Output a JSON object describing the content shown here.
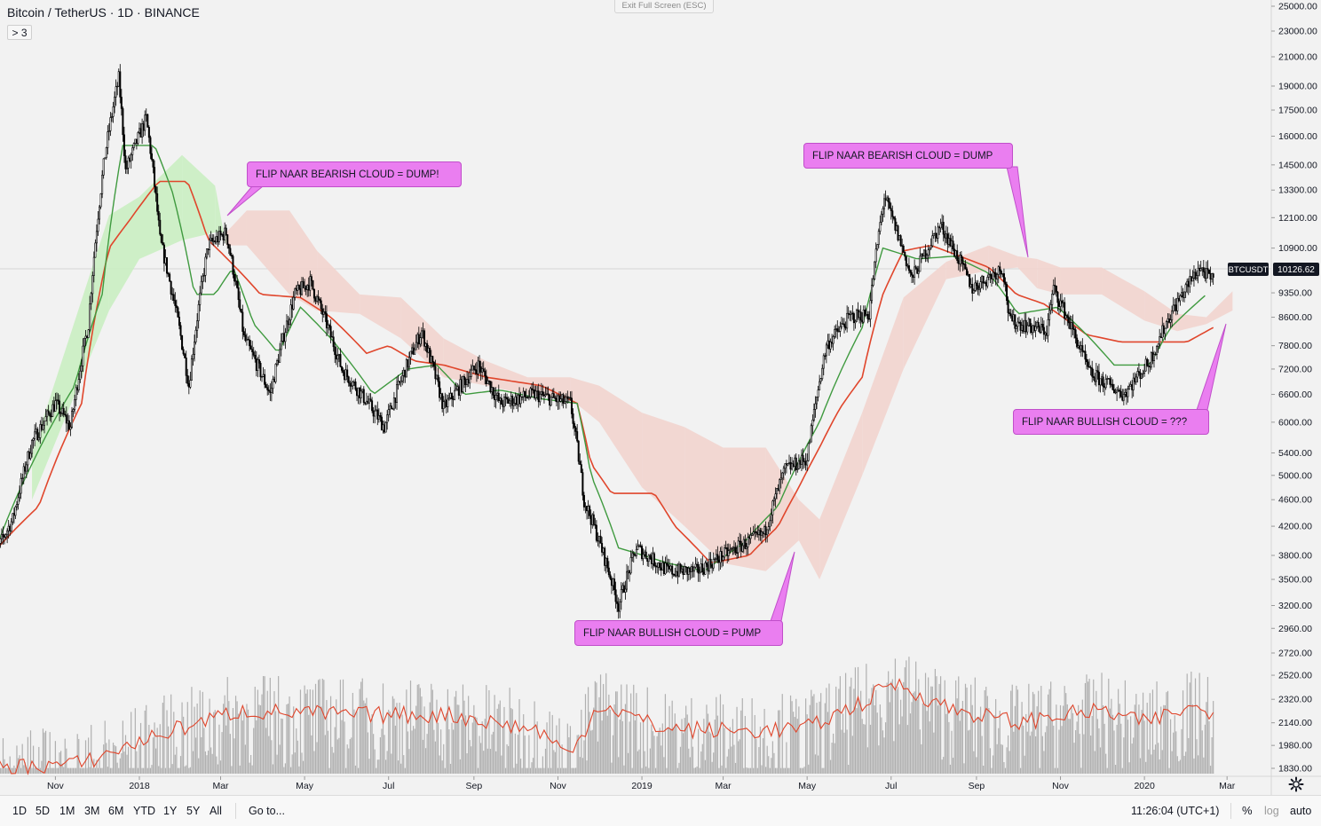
{
  "header": {
    "title": "Bitcoin / TetherUS",
    "sep1": "·",
    "interval": "1D",
    "sep2": "·",
    "exchange": "BINANCE",
    "collapse_label": "> 3"
  },
  "exit_fullscreen_label": "Exit Full Screen (ESC)",
  "callouts": {
    "c1": "FLIP NAAR BEARISH CLOUD = DUMP!",
    "c2": "FLIP NAAR BULLISH CLOUD = PUMP",
    "c3": "FLIP NAAR BEARISH CLOUD = DUMP",
    "c4": "FLIP NAAR BULLISH CLOUD = ???"
  },
  "price_tag": {
    "symbol": "BTCUSDT",
    "price": "10126.62"
  },
  "bottom_bar": {
    "timeframes": [
      "1D",
      "5D",
      "1M",
      "3M",
      "6M",
      "YTD",
      "1Y",
      "5Y",
      "All"
    ],
    "goto": "Go to...",
    "clock": "11:26:04 (UTC+1)",
    "percent": "%",
    "log": "log",
    "auto": "auto"
  },
  "colors": {
    "bg": "#f2f2f2",
    "candle": "#000000",
    "kijun": "#e0462c",
    "tenkan": "#3f9a3f",
    "cloud_bull": "#c8efc0",
    "cloud_bear": "#f2d2cc",
    "volume": "#a8a8a8",
    "vol_ma": "#e0462c",
    "callout": "#ea7ef0"
  },
  "chart_data": {
    "type": "line",
    "title": "Bitcoin / TetherUS · 1D · BINANCE",
    "scale": "log",
    "y_ticks": [
      25000,
      23000,
      21000,
      19000,
      17500,
      16000,
      14500,
      13300,
      12100,
      10900,
      9350,
      8600,
      7800,
      7200,
      6600,
      6000,
      5400,
      5000,
      4600,
      4200,
      3800,
      3500,
      3200,
      2960,
      2720,
      2520,
      2320,
      2140,
      1980,
      1830
    ],
    "y_tick_labels": [
      "25000.00",
      "23000.00",
      "21000.00",
      "19000.00",
      "17500.00",
      "16000.00",
      "14500.00",
      "13300.00",
      "12100.00",
      "10900.00",
      "9350.00",
      "8600.00",
      "7800.00",
      "7200.00",
      "6600.00",
      "6000.00",
      "5400.00",
      "5000.00",
      "4600.00",
      "4200.00",
      "3800.00",
      "3500.00",
      "3200.00",
      "2960.00",
      "2720.00",
      "2520.00",
      "2320.00",
      "2140.00",
      "1980.00",
      "1830.00"
    ],
    "x_tick_labels": [
      "Nov",
      "2018",
      "Mar",
      "May",
      "Jul",
      "Sep",
      "Nov",
      "2019",
      "Mar",
      "May",
      "Jul",
      "Sep",
      "Nov",
      "2020",
      "Mar"
    ],
    "x_ticks": [
      "2017-11-01",
      "2018-01-01",
      "2018-03-01",
      "2018-05-01",
      "2018-07-01",
      "2018-09-01",
      "2018-11-01",
      "2019-01-01",
      "2019-03-01",
      "2019-05-01",
      "2019-07-01",
      "2019-09-01",
      "2019-11-01",
      "2020-01-01",
      "2020-03-01"
    ],
    "x_range": [
      "2017-09-15",
      "2020-03-25"
    ],
    "last_price": 10126.62,
    "series": [
      {
        "name": "BTCUSDT",
        "kind": "candles-close",
        "points": [
          [
            "2017-09-15",
            3700
          ],
          [
            "2017-10-01",
            4300
          ],
          [
            "2017-10-15",
            5600
          ],
          [
            "2017-11-01",
            6400
          ],
          [
            "2017-11-12",
            5900
          ],
          [
            "2017-11-25",
            8400
          ],
          [
            "2017-12-07",
            15000
          ],
          [
            "2017-12-17",
            19500
          ],
          [
            "2017-12-22",
            14200
          ],
          [
            "2018-01-06",
            17000
          ],
          [
            "2018-01-16",
            11200
          ],
          [
            "2018-02-06",
            6800
          ],
          [
            "2018-02-20",
            11000
          ],
          [
            "2018-03-05",
            11500
          ],
          [
            "2018-03-18",
            8000
          ],
          [
            "2018-04-06",
            6600
          ],
          [
            "2018-04-24",
            9300
          ],
          [
            "2018-05-05",
            9700
          ],
          [
            "2018-05-28",
            7200
          ],
          [
            "2018-06-28",
            5900
          ],
          [
            "2018-07-25",
            8200
          ],
          [
            "2018-08-10",
            6300
          ],
          [
            "2018-09-04",
            7300
          ],
          [
            "2018-09-20",
            6400
          ],
          [
            "2018-10-15",
            6600
          ],
          [
            "2018-11-10",
            6400
          ],
          [
            "2018-11-20",
            4600
          ],
          [
            "2018-12-15",
            3200
          ],
          [
            "2018-12-28",
            3900
          ],
          [
            "2019-01-20",
            3600
          ],
          [
            "2019-02-10",
            3600
          ],
          [
            "2019-03-01",
            3800
          ],
          [
            "2019-03-31",
            4100
          ],
          [
            "2019-04-15",
            5100
          ],
          [
            "2019-05-01",
            5300
          ],
          [
            "2019-05-15",
            7800
          ],
          [
            "2019-06-01",
            8600
          ],
          [
            "2019-06-15",
            8700
          ],
          [
            "2019-06-26",
            13000
          ],
          [
            "2019-07-16",
            9800
          ],
          [
            "2019-08-06",
            11800
          ],
          [
            "2019-08-29",
            9500
          ],
          [
            "2019-09-20",
            10200
          ],
          [
            "2019-09-25",
            8500
          ],
          [
            "2019-10-22",
            8200
          ],
          [
            "2019-10-27",
            9500
          ],
          [
            "2019-11-22",
            7100
          ],
          [
            "2019-12-17",
            6600
          ],
          [
            "2020-01-05",
            7400
          ],
          [
            "2020-01-20",
            8700
          ],
          [
            "2020-02-10",
            10200
          ],
          [
            "2020-02-20",
            9700
          ]
        ]
      },
      {
        "name": "Tenkan-sen",
        "points": [
          [
            "2017-09-15",
            3700
          ],
          [
            "2017-10-15",
            5200
          ],
          [
            "2017-11-15",
            6800
          ],
          [
            "2017-12-05",
            9300
          ],
          [
            "2017-12-20",
            15500
          ],
          [
            "2018-01-12",
            15500
          ],
          [
            "2018-01-25",
            13200
          ],
          [
            "2018-02-10",
            9300
          ],
          [
            "2018-02-25",
            9300
          ],
          [
            "2018-03-10",
            10200
          ],
          [
            "2018-03-25",
            8400
          ],
          [
            "2018-04-12",
            7600
          ],
          [
            "2018-04-28",
            8900
          ],
          [
            "2018-05-20",
            8000
          ],
          [
            "2018-06-20",
            6600
          ],
          [
            "2018-07-15",
            7200
          ],
          [
            "2018-08-05",
            7300
          ],
          [
            "2018-08-25",
            6600
          ],
          [
            "2018-09-20",
            6700
          ],
          [
            "2018-10-20",
            6500
          ],
          [
            "2018-11-15",
            6400
          ],
          [
            "2018-11-25",
            5000
          ],
          [
            "2018-12-15",
            3900
          ],
          [
            "2019-01-20",
            3700
          ],
          [
            "2019-02-15",
            3600
          ],
          [
            "2019-03-15",
            3950
          ],
          [
            "2019-04-10",
            4500
          ],
          [
            "2019-05-10",
            6000
          ],
          [
            "2019-06-10",
            8300
          ],
          [
            "2019-06-25",
            10900
          ],
          [
            "2019-07-20",
            10500
          ],
          [
            "2019-08-15",
            10600
          ],
          [
            "2019-09-10",
            10000
          ],
          [
            "2019-10-01",
            8700
          ],
          [
            "2019-10-30",
            8900
          ],
          [
            "2019-11-20",
            8100
          ],
          [
            "2019-12-10",
            7300
          ],
          [
            "2020-01-05",
            7300
          ],
          [
            "2020-01-20",
            8300
          ],
          [
            "2020-02-15",
            9300
          ]
        ]
      },
      {
        "name": "Kijun-sen",
        "points": [
          [
            "2017-09-15",
            3800
          ],
          [
            "2017-10-20",
            4500
          ],
          [
            "2017-11-20",
            6400
          ],
          [
            "2017-12-10",
            10900
          ],
          [
            "2017-12-25",
            12000
          ],
          [
            "2018-01-15",
            13700
          ],
          [
            "2018-02-05",
            13700
          ],
          [
            "2018-02-20",
            11200
          ],
          [
            "2018-03-10",
            10300
          ],
          [
            "2018-03-30",
            9300
          ],
          [
            "2018-04-28",
            9200
          ],
          [
            "2018-05-20",
            8600
          ],
          [
            "2018-06-15",
            7600
          ],
          [
            "2018-07-01",
            7800
          ],
          [
            "2018-07-20",
            7400
          ],
          [
            "2018-08-10",
            7300
          ],
          [
            "2018-09-10",
            7000
          ],
          [
            "2018-10-20",
            6800
          ],
          [
            "2018-11-15",
            6400
          ],
          [
            "2018-11-25",
            5200
          ],
          [
            "2018-12-10",
            4700
          ],
          [
            "2019-01-10",
            4700
          ],
          [
            "2019-01-25",
            4200
          ],
          [
            "2019-02-20",
            3700
          ],
          [
            "2019-03-20",
            3800
          ],
          [
            "2019-04-10",
            4200
          ],
          [
            "2019-04-25",
            4800
          ],
          [
            "2019-05-10",
            5500
          ],
          [
            "2019-05-25",
            6300
          ],
          [
            "2019-06-10",
            7000
          ],
          [
            "2019-06-25",
            9300
          ],
          [
            "2019-07-10",
            10800
          ],
          [
            "2019-07-30",
            11000
          ],
          [
            "2019-08-20",
            10600
          ],
          [
            "2019-09-10",
            10200
          ],
          [
            "2019-09-30",
            9300
          ],
          [
            "2019-10-20",
            9000
          ],
          [
            "2019-11-20",
            8100
          ],
          [
            "2019-12-15",
            7900
          ],
          [
            "2020-01-10",
            7900
          ],
          [
            "2020-02-01",
            7900
          ],
          [
            "2020-02-20",
            8300
          ]
        ]
      },
      {
        "name": "Kumo (cloud)",
        "kind": "band",
        "points": [
          [
            "2017-10-15",
            5400,
            4600
          ],
          [
            "2017-12-10",
            12200,
            8800
          ],
          [
            "2018-01-01",
            13000,
            10500
          ],
          [
            "2018-02-01",
            15000,
            11200
          ],
          [
            "2018-02-25",
            13500,
            11500
          ],
          [
            "2018-03-05",
            11000,
            11500
          ],
          [
            "2018-03-20",
            11000,
            12400
          ],
          [
            "2018-04-20",
            9300,
            12400
          ],
          [
            "2018-05-10",
            8800,
            10800
          ],
          [
            "2018-06-10",
            8700,
            9300
          ],
          [
            "2018-07-10",
            8000,
            9200
          ],
          [
            "2018-08-10",
            7000,
            8000
          ],
          [
            "2018-09-10",
            6800,
            7400
          ],
          [
            "2018-10-10",
            6600,
            7000
          ],
          [
            "2018-11-10",
            6500,
            7000
          ],
          [
            "2018-12-01",
            6000,
            6800
          ],
          [
            "2019-01-01",
            4800,
            6200
          ],
          [
            "2019-02-01",
            4200,
            5900
          ],
          [
            "2019-03-01",
            3700,
            5500
          ],
          [
            "2019-04-01",
            3600,
            5500
          ],
          [
            "2019-04-25",
            4000,
            4600
          ],
          [
            "2019-05-10",
            3500,
            4300
          ],
          [
            "2019-06-10",
            5000,
            6200
          ],
          [
            "2019-07-10",
            7200,
            9200
          ],
          [
            "2019-08-10",
            9800,
            10400
          ],
          [
            "2019-09-10",
            10100,
            11000
          ],
          [
            "2019-10-01",
            10200,
            10600
          ],
          [
            "2019-10-15",
            9500,
            10500
          ],
          [
            "2019-11-01",
            9300,
            10200
          ],
          [
            "2019-12-01",
            9300,
            10200
          ],
          [
            "2020-01-01",
            8500,
            9400
          ],
          [
            "2020-01-25",
            8200,
            8700
          ],
          [
            "2020-02-15",
            8400,
            8600
          ],
          [
            "2020-03-05",
            8800,
            9400
          ]
        ]
      }
    ],
    "volume_ma": {
      "name": "Volume MA",
      "points": [
        [
          "2017-09-15",
          1835
        ],
        [
          "2017-11-20",
          1860
        ],
        [
          "2018-01-20",
          2070
        ],
        [
          "2018-03-15",
          2230
        ],
        [
          "2018-06-01",
          2200
        ],
        [
          "2018-08-15",
          2200
        ],
        [
          "2018-10-20",
          2080
        ],
        [
          "2018-11-10",
          1900
        ],
        [
          "2018-12-01",
          2290
        ],
        [
          "2019-01-15",
          2100
        ],
        [
          "2019-03-15",
          2080
        ],
        [
          "2019-05-01",
          2100
        ],
        [
          "2019-06-15",
          2320
        ],
        [
          "2019-07-01",
          2460
        ],
        [
          "2019-08-15",
          2240
        ],
        [
          "2019-10-01",
          2140
        ],
        [
          "2019-11-01",
          2200
        ],
        [
          "2019-12-01",
          2230
        ],
        [
          "2020-01-01",
          2140
        ],
        [
          "2020-02-01",
          2250
        ],
        [
          "2020-02-20",
          2230
        ]
      ]
    }
  }
}
